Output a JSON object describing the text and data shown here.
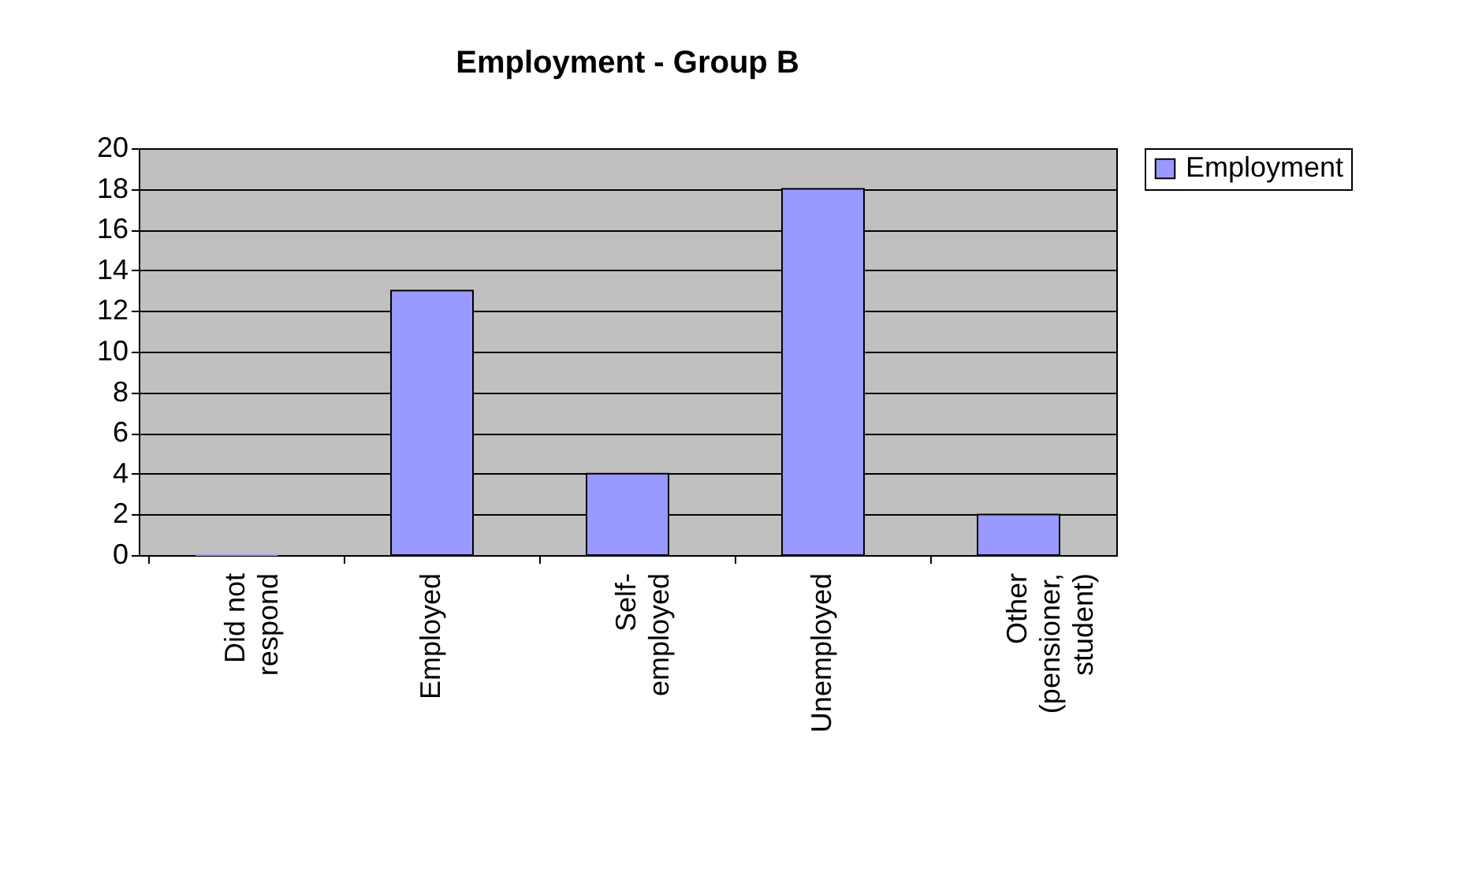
{
  "chart_data": {
    "type": "bar",
    "title": "Employment - Group B",
    "categories": [
      "Did not respond",
      "Employed",
      "Self-employed",
      "Unemployed",
      "Other (pensioner, student)"
    ],
    "series": [
      {
        "name": "Employment",
        "color": "#9999ff",
        "values": [
          0,
          13,
          4,
          18,
          2
        ]
      }
    ],
    "ylim": [
      0,
      20
    ],
    "yticks": [
      0,
      2,
      4,
      6,
      8,
      10,
      12,
      14,
      16,
      18,
      20
    ],
    "grid": "y",
    "legend": "right"
  }
}
